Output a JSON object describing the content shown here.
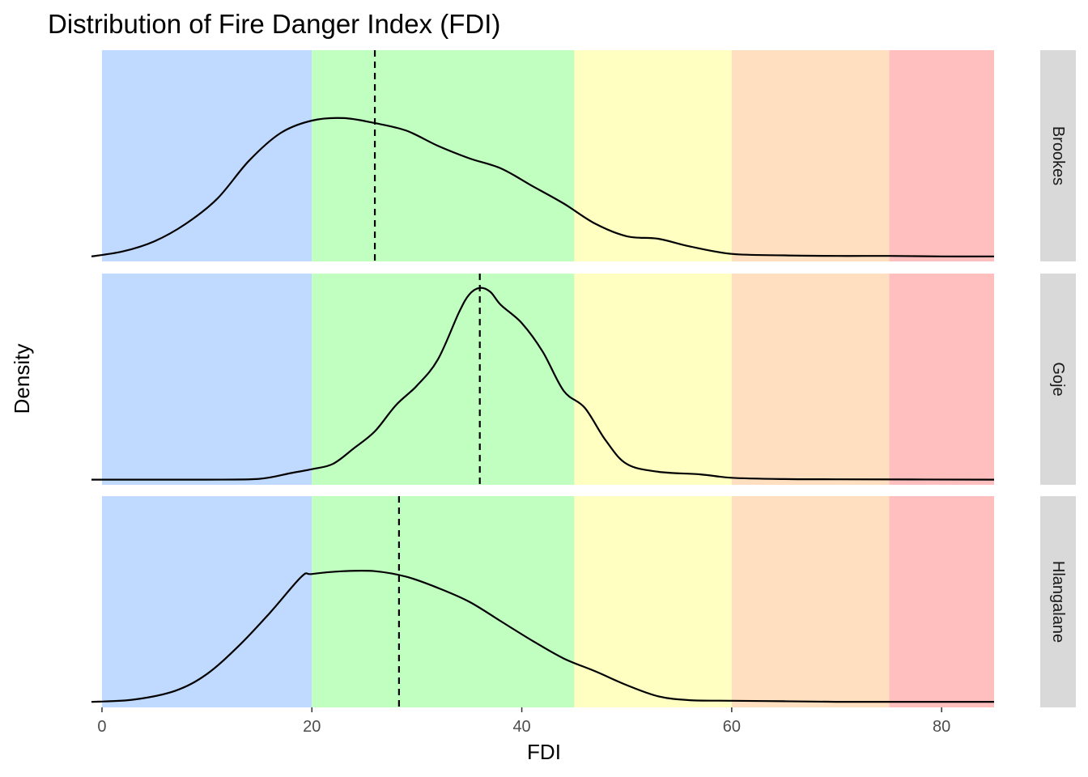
{
  "chart_data": {
    "type": "area",
    "title": "Distribution of Fire Danger Index (FDI)",
    "xlabel": "FDI",
    "ylabel": "Density",
    "xlim": [
      -1,
      85
    ],
    "x_ticks": [
      0,
      20,
      40,
      60,
      80
    ],
    "y_tick_labels_shown": false,
    "grid": false,
    "legend": "none",
    "line_color": "#000000",
    "fdi_bands": [
      {
        "from": 0,
        "to": 20,
        "color": "#bfd9ff"
      },
      {
        "from": 20,
        "to": 45,
        "color": "#c1ffc1"
      },
      {
        "from": 45,
        "to": 60,
        "color": "#ffffc2"
      },
      {
        "from": 60,
        "to": 75,
        "color": "#ffdfbf"
      },
      {
        "from": 75,
        "to": 85,
        "color": "#ffbfbf"
      }
    ],
    "panels": [
      {
        "name": "Brookes",
        "mean": 26,
        "ylim": [
          -0.001,
          0.041
        ],
        "x": [
          -1,
          2,
          5,
          8,
          11,
          14,
          17,
          20,
          23,
          26,
          29,
          32,
          35,
          38,
          41,
          44,
          47,
          50,
          53,
          56,
          60,
          65,
          70,
          75,
          80,
          85
        ],
        "y": [
          0.0,
          0.001,
          0.003,
          0.0065,
          0.0115,
          0.019,
          0.0245,
          0.027,
          0.0275,
          0.0265,
          0.025,
          0.022,
          0.0195,
          0.0175,
          0.014,
          0.0105,
          0.0065,
          0.004,
          0.0035,
          0.002,
          0.0005,
          0.0002,
          0.0001,
          0.0001,
          0.0,
          0.0
        ]
      },
      {
        "name": "Goje",
        "mean": 36,
        "ylim": [
          -0.002,
          0.079
        ],
        "x": [
          -1,
          5,
          10,
          15,
          18,
          20,
          22,
          24,
          26,
          28,
          30,
          32,
          34,
          35,
          36,
          37,
          38,
          40,
          42,
          44,
          46,
          48,
          50,
          53,
          57,
          60,
          65,
          70,
          85
        ],
        "y": [
          0.0,
          0.0,
          0.0,
          0.0003,
          0.0025,
          0.004,
          0.006,
          0.012,
          0.0185,
          0.0285,
          0.036,
          0.046,
          0.064,
          0.071,
          0.0735,
          0.072,
          0.067,
          0.06,
          0.049,
          0.034,
          0.0275,
          0.015,
          0.006,
          0.003,
          0.002,
          0.0007,
          0.0002,
          0.0001,
          0.0
        ]
      },
      {
        "name": "Hlangalane",
        "mean": 28.3,
        "ylim": [
          -0.001,
          0.037
        ],
        "x": [
          -1,
          3,
          7,
          10,
          13,
          16,
          19,
          20,
          23,
          26,
          29,
          32,
          35,
          38,
          41,
          44,
          47,
          50,
          53,
          56,
          60,
          65,
          70,
          75,
          80,
          85
        ],
        "y": [
          0.0,
          0.0004,
          0.002,
          0.005,
          0.01,
          0.016,
          0.0225,
          0.023,
          0.0235,
          0.0235,
          0.0225,
          0.0205,
          0.018,
          0.0145,
          0.011,
          0.0078,
          0.0055,
          0.003,
          0.001,
          0.0003,
          0.0002,
          0.0001,
          0.0,
          0.0,
          0.0,
          0.0
        ]
      }
    ]
  }
}
